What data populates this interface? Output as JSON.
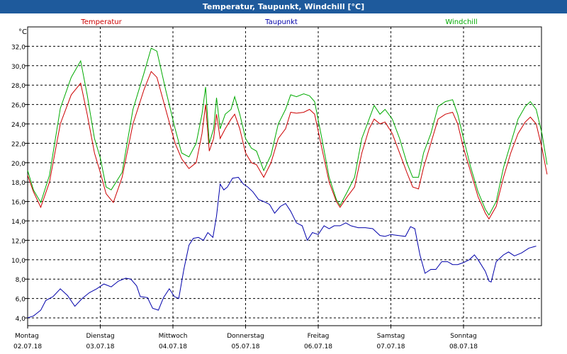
{
  "window": {
    "title": "Temperatur, Taupunkt, Windchill [°C]"
  },
  "chart_data": {
    "type": "line",
    "title": "Temperatur, Taupunkt, Windchill [°C]",
    "ylabel": "°C",
    "ylim": [
      3.2,
      34.0
    ],
    "yticks": [
      "4,0",
      "6,0",
      "8,0",
      "10,0",
      "12,0",
      "14,0",
      "16,0",
      "18,0",
      "20,0",
      "22,0",
      "24,0",
      "26,0",
      "28,0",
      "30,0",
      "32,0"
    ],
    "xlim": [
      0,
      7
    ],
    "xticks": [
      {
        "day": "Montag",
        "date": "02.07.18"
      },
      {
        "day": "Dienstag",
        "date": "03.07.18"
      },
      {
        "day": "Mittwoch",
        "date": "04.07.18"
      },
      {
        "day": "Donnerstag",
        "date": "05.07.18"
      },
      {
        "day": "Freitag",
        "date": "06.07.18"
      },
      {
        "day": "Samstag",
        "date": "07.07.18"
      },
      {
        "day": "Sonntag",
        "date": "08.07.18"
      }
    ],
    "grid": true,
    "legend_position": "top",
    "series": [
      {
        "name": "Temperatur",
        "color": "#cc0000",
        "points": [
          [
            0,
            18.7
          ],
          [
            0.08,
            17.0
          ],
          [
            0.18,
            15.4
          ],
          [
            0.3,
            18.0
          ],
          [
            0.45,
            24.0
          ],
          [
            0.6,
            27.0
          ],
          [
            0.73,
            28.2
          ],
          [
            0.82,
            25.0
          ],
          [
            0.92,
            21.0
          ],
          [
            1.0,
            19.0
          ],
          [
            1.08,
            16.8
          ],
          [
            1.18,
            15.9
          ],
          [
            1.3,
            18.5
          ],
          [
            1.45,
            24.0
          ],
          [
            1.6,
            27.5
          ],
          [
            1.7,
            29.4
          ],
          [
            1.78,
            28.8
          ],
          [
            1.9,
            25.5
          ],
          [
            2.03,
            22.0
          ],
          [
            2.12,
            20.4
          ],
          [
            2.22,
            19.4
          ],
          [
            2.32,
            20.0
          ],
          [
            2.4,
            23.0
          ],
          [
            2.45,
            26.0
          ],
          [
            2.5,
            21.2
          ],
          [
            2.56,
            22.5
          ],
          [
            2.6,
            25.0
          ],
          [
            2.65,
            22.5
          ],
          [
            2.72,
            23.5
          ],
          [
            2.8,
            24.5
          ],
          [
            2.85,
            25.0
          ],
          [
            2.92,
            23.5
          ],
          [
            3.0,
            21.0
          ],
          [
            3.08,
            20.0
          ],
          [
            3.15,
            19.8
          ],
          [
            3.25,
            18.5
          ],
          [
            3.35,
            20.0
          ],
          [
            3.45,
            22.5
          ],
          [
            3.55,
            23.5
          ],
          [
            3.62,
            25.2
          ],
          [
            3.7,
            25.1
          ],
          [
            3.8,
            25.2
          ],
          [
            3.88,
            25.5
          ],
          [
            3.95,
            25.0
          ],
          [
            4.05,
            21.5
          ],
          [
            4.15,
            18.0
          ],
          [
            4.25,
            16.0
          ],
          [
            4.3,
            15.4
          ],
          [
            4.4,
            16.5
          ],
          [
            4.5,
            17.5
          ],
          [
            4.6,
            21.0
          ],
          [
            4.7,
            23.5
          ],
          [
            4.77,
            24.5
          ],
          [
            4.85,
            24.0
          ],
          [
            4.92,
            24.2
          ],
          [
            5.02,
            23.0
          ],
          [
            5.12,
            21.0
          ],
          [
            5.22,
            19.0
          ],
          [
            5.3,
            17.5
          ],
          [
            5.38,
            17.3
          ],
          [
            5.45,
            19.5
          ],
          [
            5.55,
            22.0
          ],
          [
            5.65,
            24.5
          ],
          [
            5.75,
            25.0
          ],
          [
            5.85,
            25.2
          ],
          [
            5.92,
            24.0
          ],
          [
            6.0,
            21.5
          ],
          [
            6.1,
            19.0
          ],
          [
            6.2,
            16.5
          ],
          [
            6.3,
            14.8
          ],
          [
            6.35,
            14.2
          ],
          [
            6.45,
            15.5
          ],
          [
            6.55,
            18.5
          ],
          [
            6.65,
            21.0
          ],
          [
            6.75,
            23.0
          ],
          [
            6.85,
            24.2
          ],
          [
            6.92,
            24.7
          ],
          [
            7.0,
            24.0
          ],
          [
            7.08,
            21.5
          ],
          [
            7.15,
            18.8
          ]
        ]
      },
      {
        "name": "Taupunkt",
        "color": "#0000aa",
        "points": [
          [
            0,
            4.0
          ],
          [
            0.08,
            4.2
          ],
          [
            0.18,
            4.8
          ],
          [
            0.25,
            5.8
          ],
          [
            0.35,
            6.2
          ],
          [
            0.45,
            7.0
          ],
          [
            0.55,
            6.3
          ],
          [
            0.65,
            5.2
          ],
          [
            0.75,
            6.0
          ],
          [
            0.85,
            6.6
          ],
          [
            0.95,
            7.0
          ],
          [
            1.05,
            7.5
          ],
          [
            1.15,
            7.2
          ],
          [
            1.25,
            7.8
          ],
          [
            1.35,
            8.1
          ],
          [
            1.42,
            8.0
          ],
          [
            1.5,
            7.3
          ],
          [
            1.55,
            6.2
          ],
          [
            1.65,
            6.1
          ],
          [
            1.72,
            5.0
          ],
          [
            1.8,
            4.8
          ],
          [
            1.87,
            6.1
          ],
          [
            1.95,
            7.0
          ],
          [
            2.02,
            6.2
          ],
          [
            2.08,
            6.0
          ],
          [
            2.15,
            9.0
          ],
          [
            2.22,
            11.5
          ],
          [
            2.28,
            12.2
          ],
          [
            2.35,
            12.3
          ],
          [
            2.42,
            12.0
          ],
          [
            2.48,
            12.8
          ],
          [
            2.55,
            12.3
          ],
          [
            2.6,
            14.5
          ],
          [
            2.65,
            17.8
          ],
          [
            2.7,
            17.2
          ],
          [
            2.75,
            17.5
          ],
          [
            2.82,
            18.4
          ],
          [
            2.9,
            18.5
          ],
          [
            2.97,
            17.8
          ],
          [
            3.03,
            17.5
          ],
          [
            3.1,
            17.0
          ],
          [
            3.18,
            16.2
          ],
          [
            3.25,
            16.0
          ],
          [
            3.33,
            15.7
          ],
          [
            3.4,
            14.8
          ],
          [
            3.48,
            15.5
          ],
          [
            3.55,
            15.8
          ],
          [
            3.62,
            15.0
          ],
          [
            3.7,
            13.8
          ],
          [
            3.78,
            13.5
          ],
          [
            3.85,
            12.0
          ],
          [
            3.92,
            12.8
          ],
          [
            4.0,
            12.6
          ],
          [
            4.08,
            13.5
          ],
          [
            4.15,
            13.2
          ],
          [
            4.22,
            13.5
          ],
          [
            4.3,
            13.5
          ],
          [
            4.38,
            13.8
          ],
          [
            4.45,
            13.5
          ],
          [
            4.55,
            13.3
          ],
          [
            4.65,
            13.3
          ],
          [
            4.75,
            13.2
          ],
          [
            4.85,
            12.5
          ],
          [
            4.92,
            12.4
          ],
          [
            5.0,
            12.6
          ],
          [
            5.1,
            12.5
          ],
          [
            5.2,
            12.4
          ],
          [
            5.27,
            13.4
          ],
          [
            5.33,
            13.2
          ],
          [
            5.4,
            10.5
          ],
          [
            5.47,
            8.6
          ],
          [
            5.55,
            9.0
          ],
          [
            5.62,
            9.0
          ],
          [
            5.7,
            9.8
          ],
          [
            5.78,
            9.8
          ],
          [
            5.85,
            9.5
          ],
          [
            5.92,
            9.5
          ],
          [
            6.0,
            9.7
          ],
          [
            6.08,
            10.0
          ],
          [
            6.15,
            10.5
          ],
          [
            6.2,
            10.0
          ],
          [
            6.3,
            8.8
          ],
          [
            6.35,
            7.8
          ],
          [
            6.38,
            7.7
          ],
          [
            6.45,
            9.8
          ],
          [
            6.55,
            10.5
          ],
          [
            6.62,
            10.8
          ],
          [
            6.7,
            10.4
          ],
          [
            6.8,
            10.7
          ],
          [
            6.9,
            11.2
          ],
          [
            7.0,
            11.4
          ]
        ]
      },
      {
        "name": "Windchill",
        "color": "#00aa00",
        "points": [
          [
            0,
            19.2
          ],
          [
            0.08,
            17.2
          ],
          [
            0.18,
            15.9
          ],
          [
            0.3,
            18.7
          ],
          [
            0.45,
            25.6
          ],
          [
            0.6,
            28.8
          ],
          [
            0.73,
            30.5
          ],
          [
            0.82,
            27.0
          ],
          [
            0.92,
            22.5
          ],
          [
            1.0,
            20.5
          ],
          [
            1.08,
            17.5
          ],
          [
            1.15,
            17.2
          ],
          [
            1.3,
            19.0
          ],
          [
            1.45,
            25.5
          ],
          [
            1.6,
            29.2
          ],
          [
            1.7,
            31.8
          ],
          [
            1.78,
            31.5
          ],
          [
            1.9,
            27.5
          ],
          [
            2.03,
            23.5
          ],
          [
            2.12,
            21.0
          ],
          [
            2.22,
            20.6
          ],
          [
            2.32,
            22.0
          ],
          [
            2.4,
            25.0
          ],
          [
            2.45,
            27.8
          ],
          [
            2.5,
            22.0
          ],
          [
            2.56,
            23.5
          ],
          [
            2.6,
            26.7
          ],
          [
            2.65,
            23.5
          ],
          [
            2.72,
            25.0
          ],
          [
            2.8,
            25.5
          ],
          [
            2.85,
            26.8
          ],
          [
            2.92,
            25.0
          ],
          [
            3.0,
            22.5
          ],
          [
            3.08,
            21.5
          ],
          [
            3.15,
            21.2
          ],
          [
            3.25,
            19.2
          ],
          [
            3.35,
            20.8
          ],
          [
            3.45,
            24.0
          ],
          [
            3.55,
            25.5
          ],
          [
            3.62,
            27.0
          ],
          [
            3.7,
            26.8
          ],
          [
            3.8,
            27.1
          ],
          [
            3.88,
            26.9
          ],
          [
            3.95,
            26.3
          ],
          [
            4.05,
            22.5
          ],
          [
            4.15,
            18.5
          ],
          [
            4.25,
            16.2
          ],
          [
            4.3,
            15.6
          ],
          [
            4.4,
            17.0
          ],
          [
            4.5,
            18.5
          ],
          [
            4.6,
            22.5
          ],
          [
            4.7,
            24.5
          ],
          [
            4.77,
            25.9
          ],
          [
            4.85,
            25.0
          ],
          [
            4.92,
            25.5
          ],
          [
            5.02,
            24.5
          ],
          [
            5.12,
            22.5
          ],
          [
            5.22,
            20.0
          ],
          [
            5.3,
            18.5
          ],
          [
            5.38,
            18.5
          ],
          [
            5.45,
            21.0
          ],
          [
            5.55,
            23.0
          ],
          [
            5.65,
            25.8
          ],
          [
            5.75,
            26.3
          ],
          [
            5.85,
            26.5
          ],
          [
            5.92,
            25.0
          ],
          [
            6.0,
            22.5
          ],
          [
            6.1,
            19.5
          ],
          [
            6.2,
            17.0
          ],
          [
            6.3,
            15.2
          ],
          [
            6.35,
            14.6
          ],
          [
            6.45,
            16.0
          ],
          [
            6.55,
            19.5
          ],
          [
            6.65,
            22.0
          ],
          [
            6.75,
            24.5
          ],
          [
            6.85,
            25.8
          ],
          [
            6.92,
            26.3
          ],
          [
            7.0,
            25.5
          ],
          [
            7.08,
            23.0
          ],
          [
            7.15,
            19.8
          ]
        ]
      }
    ]
  }
}
